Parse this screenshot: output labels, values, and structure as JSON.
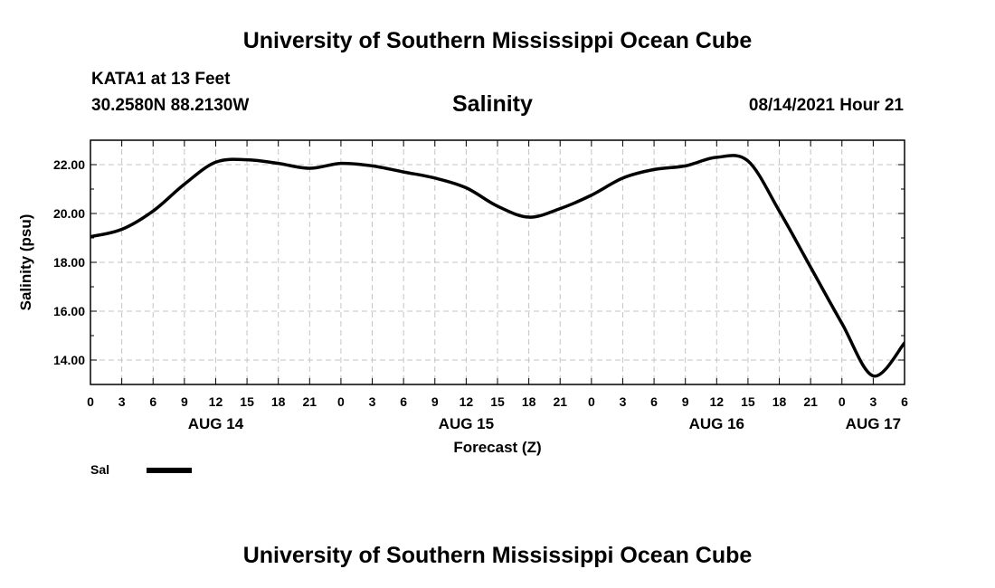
{
  "header": {
    "title": "University of Southern Mississippi Ocean Cube",
    "station": "KATA1 at 13 Feet",
    "coordinates": "30.2580N  88.2130W",
    "timestamp": "08/14/2021 Hour 21"
  },
  "footer": {
    "title": "University of Southern Mississippi Ocean Cube"
  },
  "chart_data": {
    "type": "line",
    "title": "Salinity",
    "xlabel": "Forecast (Z)",
    "ylabel": "Salinity (psu)",
    "x_unit": "forecast hours from AUG 14 00Z",
    "xlim": [
      0,
      78
    ],
    "ylim": [
      13.0,
      23.0
    ],
    "y_ticks": [
      14.0,
      16.0,
      18.0,
      20.0,
      22.0
    ],
    "y_tick_labels": [
      "14.00",
      "16.00",
      "18.00",
      "20.00",
      "22.00"
    ],
    "x_ticks": [
      0,
      3,
      6,
      9,
      12,
      15,
      18,
      21,
      24,
      27,
      30,
      33,
      36,
      39,
      42,
      45,
      48,
      51,
      54,
      57,
      60,
      63,
      66,
      69,
      72,
      75,
      78
    ],
    "x_tick_labels": [
      "0",
      "3",
      "6",
      "9",
      "12",
      "15",
      "18",
      "21",
      "0",
      "3",
      "6",
      "9",
      "12",
      "15",
      "18",
      "21",
      "0",
      "3",
      "6",
      "9",
      "12",
      "15",
      "18",
      "21",
      "0",
      "3",
      "6"
    ],
    "date_labels": [
      {
        "label": "AUG 14",
        "x": 12
      },
      {
        "label": "AUG 15",
        "x": 36
      },
      {
        "label": "AUG 16",
        "x": 60
      },
      {
        "label": "AUG 17",
        "x": 75
      }
    ],
    "grid": true,
    "legend_position": "bottom-left",
    "series": [
      {
        "name": "Sal",
        "color": "#000000",
        "x": [
          0,
          3,
          6,
          9,
          12,
          15,
          18,
          21,
          24,
          27,
          30,
          33,
          36,
          39,
          42,
          45,
          48,
          51,
          54,
          57,
          60,
          63,
          66,
          69,
          72,
          75,
          78
        ],
        "values": [
          19.05,
          19.35,
          20.1,
          21.2,
          22.1,
          22.2,
          22.05,
          21.85,
          22.05,
          21.95,
          21.7,
          21.45,
          21.05,
          20.3,
          19.85,
          20.2,
          20.75,
          21.45,
          21.8,
          21.95,
          22.3,
          22.15,
          20.1,
          17.8,
          15.5,
          13.35,
          14.7
        ]
      }
    ]
  }
}
